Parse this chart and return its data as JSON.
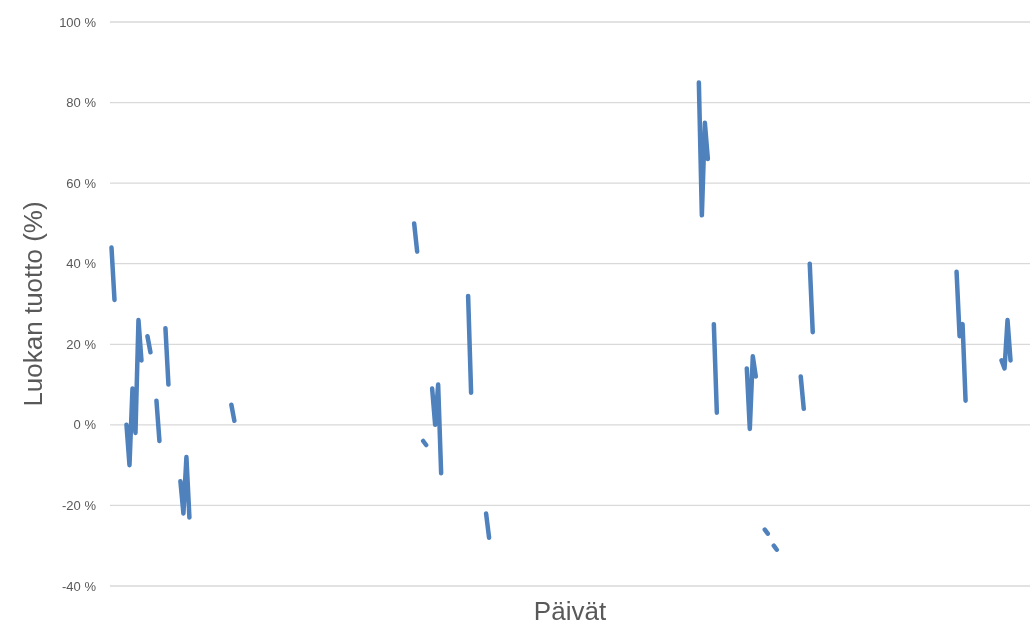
{
  "chart_data": {
    "type": "line",
    "xlabel": "Päivät",
    "ylabel": "Luokan tuotto (%)",
    "categories": [
      null,
      null,
      null,
      null,
      null,
      null,
      null,
      null,
      null,
      null,
      null,
      null,
      null,
      null,
      null,
      null,
      null,
      null,
      null,
      null,
      null,
      null,
      null,
      null,
      null,
      null,
      null,
      null,
      null,
      null,
      null,
      null,
      null,
      null,
      null,
      null,
      null,
      null,
      null,
      null,
      null,
      null,
      null,
      null,
      null,
      null,
      null,
      null,
      null,
      null,
      null,
      null,
      null,
      null,
      null,
      null,
      null,
      null,
      null,
      null,
      null,
      null,
      null,
      null,
      null,
      null,
      null,
      null,
      null,
      null,
      null,
      null,
      null,
      null,
      null,
      null,
      null,
      null,
      null,
      null,
      null,
      null,
      null,
      null,
      null,
      null,
      null,
      null,
      null,
      null,
      null,
      null,
      null,
      null,
      null,
      null,
      null,
      null,
      null,
      null,
      null,
      null,
      null,
      null,
      null,
      null,
      null,
      null,
      null,
      null,
      null,
      null,
      null,
      null,
      null,
      null,
      null,
      null,
      null,
      null,
      null,
      null,
      null,
      null,
      null,
      null,
      null,
      null,
      null,
      null,
      null,
      null,
      null,
      null,
      null,
      null,
      null,
      null,
      null,
      null,
      null,
      null,
      null,
      null,
      null,
      null,
      null,
      null,
      null,
      null,
      null,
      null,
      null,
      null,
      null,
      null,
      null,
      null,
      null,
      null,
      null,
      null,
      null,
      null,
      null,
      null,
      null,
      null,
      null,
      null,
      null,
      null,
      null,
      null,
      null,
      null,
      null,
      null,
      null,
      null,
      null,
      null,
      null,
      null,
      null,
      null,
      null,
      null,
      null,
      null,
      null,
      null,
      null,
      null,
      null,
      null,
      null,
      null,
      null,
      null,
      null,
      null,
      null,
      null,
      null,
      null,
      null,
      null,
      null,
      null,
      null,
      null,
      null,
      null,
      null,
      null,
      null,
      null,
      null,
      null,
      null,
      null,
      null,
      null,
      null,
      null,
      null,
      null,
      null,
      null,
      null,
      null,
      null,
      null,
      null,
      null,
      null,
      null,
      null,
      null,
      null,
      null,
      null,
      null,
      null,
      null,
      null,
      null,
      null,
      null,
      null,
      null,
      null,
      null,
      null,
      null,
      null,
      null,
      null,
      null,
      null,
      null,
      null,
      null,
      null,
      null,
      null,
      null,
      null,
      null,
      null,
      null,
      null,
      null,
      null,
      null,
      null,
      null,
      null,
      null,
      null,
      null,
      null,
      null,
      null,
      null,
      null,
      null,
      null,
      null,
      null,
      null,
      null,
      null,
      null,
      null,
      null,
      null,
      null,
      null,
      null,
      null,
      null,
      null,
      null,
      null,
      null
    ],
    "series": [
      {
        "color": "#4f81bd",
        "values": [
          44,
          31,
          null,
          null,
          null,
          0,
          -10,
          9,
          -2,
          26,
          16,
          null,
          22,
          18,
          null,
          6,
          -4,
          null,
          24,
          10,
          null,
          null,
          null,
          -14,
          -22,
          -8,
          -23,
          null,
          null,
          null,
          null,
          null,
          null,
          null,
          null,
          null,
          null,
          null,
          null,
          null,
          5,
          1,
          null,
          null,
          null,
          null,
          null,
          null,
          null,
          null,
          null,
          null,
          null,
          null,
          null,
          null,
          null,
          null,
          null,
          null,
          null,
          null,
          null,
          null,
          null,
          null,
          null,
          null,
          null,
          null,
          null,
          null,
          null,
          null,
          null,
          null,
          null,
          null,
          null,
          null,
          null,
          null,
          null,
          null,
          null,
          null,
          null,
          null,
          null,
          null,
          null,
          null,
          null,
          null,
          null,
          null,
          null,
          null,
          null,
          null,
          null,
          50,
          43,
          null,
          -4,
          -5,
          null,
          9,
          0,
          10,
          -12,
          null,
          null,
          null,
          null,
          null,
          null,
          null,
          null,
          32,
          8,
          null,
          null,
          null,
          null,
          -22,
          -28,
          null,
          null,
          null,
          null,
          null,
          null,
          null,
          null,
          null,
          null,
          null,
          null,
          null,
          null,
          null,
          null,
          null,
          null,
          null,
          null,
          null,
          null,
          null,
          null,
          null,
          null,
          null,
          null,
          null,
          null,
          null,
          null,
          null,
          null,
          null,
          null,
          null,
          null,
          null,
          null,
          null,
          null,
          null,
          null,
          null,
          null,
          null,
          null,
          null,
          null,
          null,
          null,
          null,
          null,
          null,
          null,
          null,
          null,
          null,
          null,
          null,
          null,
          null,
          null,
          null,
          null,
          null,
          null,
          null,
          85,
          52,
          75,
          66,
          null,
          25,
          3,
          null,
          null,
          null,
          null,
          null,
          null,
          null,
          null,
          null,
          14,
          -1,
          17,
          12,
          null,
          null,
          -26,
          -27,
          null,
          -30,
          -31,
          null,
          null,
          null,
          null,
          null,
          null,
          null,
          12,
          4,
          null,
          40,
          23,
          null,
          null,
          null,
          null,
          null,
          null,
          null,
          null,
          null,
          null,
          null,
          null,
          null,
          null,
          null,
          null,
          null,
          null,
          null,
          null,
          null,
          null,
          null,
          null,
          null,
          null,
          null,
          null,
          null,
          null,
          null,
          null,
          null,
          null,
          null,
          null,
          null,
          null,
          null,
          null,
          null,
          null,
          null,
          null,
          null,
          null,
          null,
          38,
          22,
          25,
          6,
          null,
          null,
          null,
          null,
          null,
          null,
          null,
          null,
          null,
          null,
          null,
          16,
          14,
          26,
          16,
          null,
          null,
          null,
          null,
          null,
          null
        ]
      }
    ],
    "ylim": [
      -40,
      100
    ],
    "yticks": [
      {
        "value": -40,
        "label": "-40 %"
      },
      {
        "value": -20,
        "label": "-20 %"
      },
      {
        "value": 0,
        "label": "0 %"
      },
      {
        "value": 20,
        "label": "20 %"
      },
      {
        "value": 40,
        "label": "40 %"
      },
      {
        "value": 60,
        "label": "60 %"
      },
      {
        "value": 80,
        "label": "80 %"
      },
      {
        "value": 100,
        "label": "100 %"
      }
    ],
    "grid": "y",
    "tick_labels": "y",
    "line_style": "solid"
  }
}
